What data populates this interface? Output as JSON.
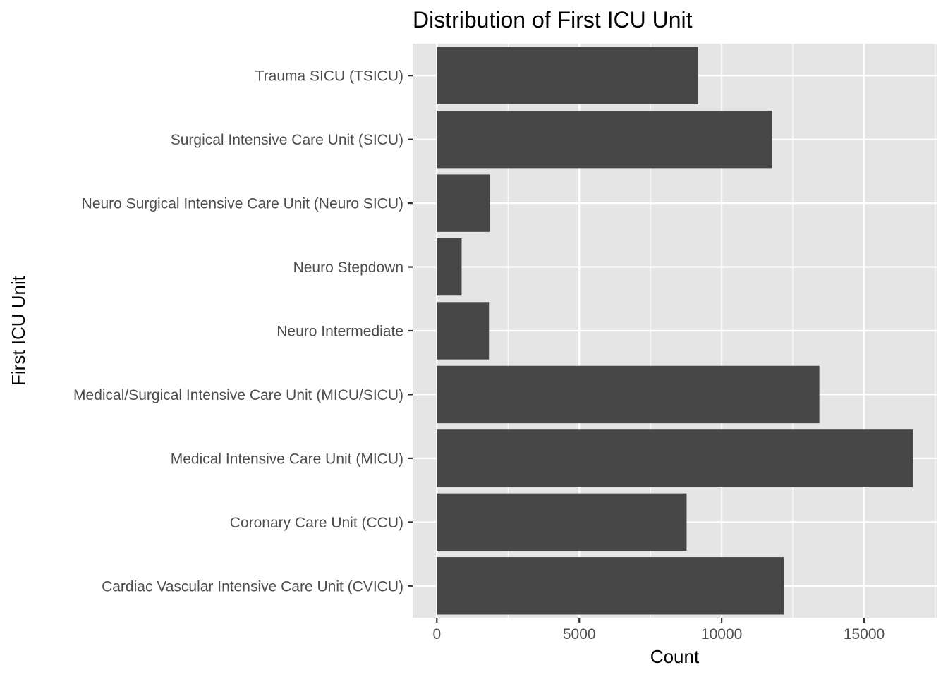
{
  "chart_data": {
    "type": "bar",
    "orientation": "horizontal",
    "title": "Distribution of First ICU Unit",
    "xlabel": "Count",
    "ylabel": "First ICU Unit",
    "categories": [
      "Cardiac Vascular Intensive Care Unit (CVICU)",
      "Coronary Care Unit (CCU)",
      "Medical Intensive Care Unit (MICU)",
      "Medical/Surgical Intensive Care Unit (MICU/SICU)",
      "Neuro Intermediate",
      "Neuro Stepdown",
      "Neuro Surgical Intensive Care Unit (Neuro SICU)",
      "Surgical Intensive Care Unit (SICU)",
      "Trauma SICU (TSICU)"
    ],
    "values": [
      12190,
      8770,
      16710,
      13430,
      1830,
      870,
      1860,
      11770,
      9170
    ],
    "xlim": [
      -850,
      17550
    ],
    "xticks": [
      0,
      5000,
      10000,
      15000
    ],
    "xtick_labels": [
      "0",
      "5000",
      "10000",
      "15000"
    ],
    "grid": true,
    "theme": "ggplot2 grey",
    "bar_color": "#474747",
    "panel_color": "#e5e5e5"
  }
}
